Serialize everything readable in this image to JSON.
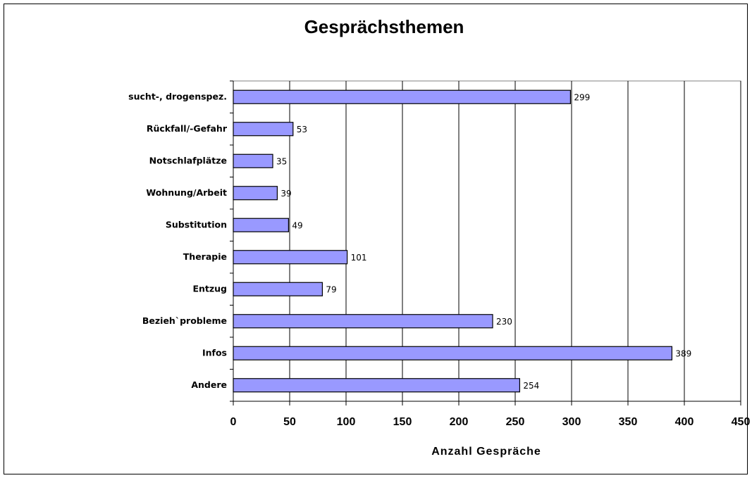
{
  "chart_data": {
    "type": "hbar",
    "title": "Gesprächsthemen",
    "x_label": "Anzahl Gespräche",
    "categories": [
      "sucht-, drogenspez.",
      "Rückfall/-Gefahr",
      "Notschlafplätze",
      "Wohnung/Arbeit",
      "Substitution",
      "Therapie",
      "Entzug",
      "Bezieh`probleme",
      "Infos",
      "Andere"
    ],
    "values": [
      299,
      53,
      35,
      39,
      49,
      101,
      79,
      230,
      389,
      254
    ],
    "color": "#9999ff",
    "xlim": [
      0,
      450
    ],
    "xticks": [
      0,
      50,
      100,
      150,
      200,
      250,
      300,
      350,
      400,
      450
    ],
    "grid": true
  }
}
